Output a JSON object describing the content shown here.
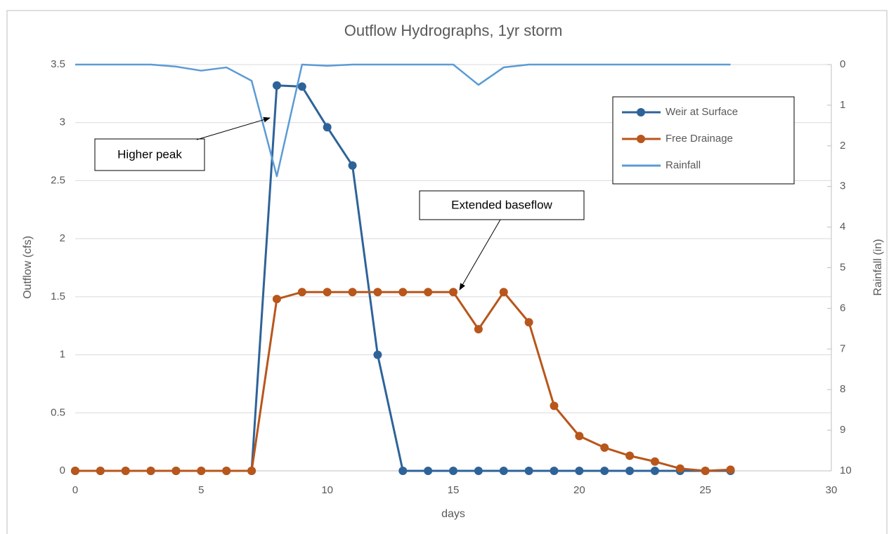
{
  "chart_data": {
    "type": "line",
    "title": "Outflow Hydrographs, 1yr storm",
    "xlabel": "days",
    "ylabel": "Outflow (cfs)",
    "y2label": "Rainfall (in)",
    "x": [
      0,
      1,
      2,
      3,
      4,
      5,
      6,
      7,
      8,
      9,
      10,
      11,
      12,
      13,
      14,
      15,
      16,
      17,
      18,
      19,
      20,
      21,
      22,
      23,
      24,
      25,
      26
    ],
    "series": [
      {
        "name": "Weir at Surface",
        "color": "#2e6399",
        "marker": true,
        "values": [
          0,
          0,
          0,
          0,
          0,
          0,
          0,
          0,
          3.32,
          3.31,
          2.96,
          2.63,
          1.0,
          0,
          0,
          0,
          0,
          0,
          0,
          0,
          0,
          0,
          0,
          0,
          0,
          0,
          0
        ]
      },
      {
        "name": "Free Drainage",
        "color": "#b8561b",
        "marker": true,
        "values": [
          0,
          0,
          0,
          0,
          0,
          0,
          0,
          0,
          1.48,
          1.54,
          1.54,
          1.54,
          1.54,
          1.54,
          1.54,
          1.54,
          1.22,
          1.54,
          1.28,
          0.56,
          0.3,
          0.2,
          0.13,
          0.08,
          0.02,
          0,
          0.01
        ]
      },
      {
        "name": "Rainfall",
        "color": "#5b9bd5",
        "marker": false,
        "axis": "y2",
        "values": [
          0,
          0,
          0,
          0,
          0.05,
          0.15,
          0.07,
          0.4,
          2.75,
          0,
          0.03,
          0,
          0,
          0,
          0,
          0,
          0.5,
          0.07,
          0,
          0,
          0,
          0,
          0,
          0,
          0,
          0,
          0
        ]
      }
    ],
    "xlim": [
      0,
      30
    ],
    "xticks": [
      0,
      5,
      10,
      15,
      20,
      25,
      30
    ],
    "ylim": [
      0,
      3.5
    ],
    "yticks": [
      0,
      0.5,
      1,
      1.5,
      2,
      2.5,
      3,
      3.5
    ],
    "y2lim": [
      10,
      0
    ],
    "y2ticks": [
      0,
      1,
      2,
      3,
      4,
      5,
      6,
      7,
      8,
      9,
      10
    ],
    "grid": true,
    "legend": "upper right",
    "annotations": [
      "Higher peak",
      "Extended baseflow"
    ]
  }
}
